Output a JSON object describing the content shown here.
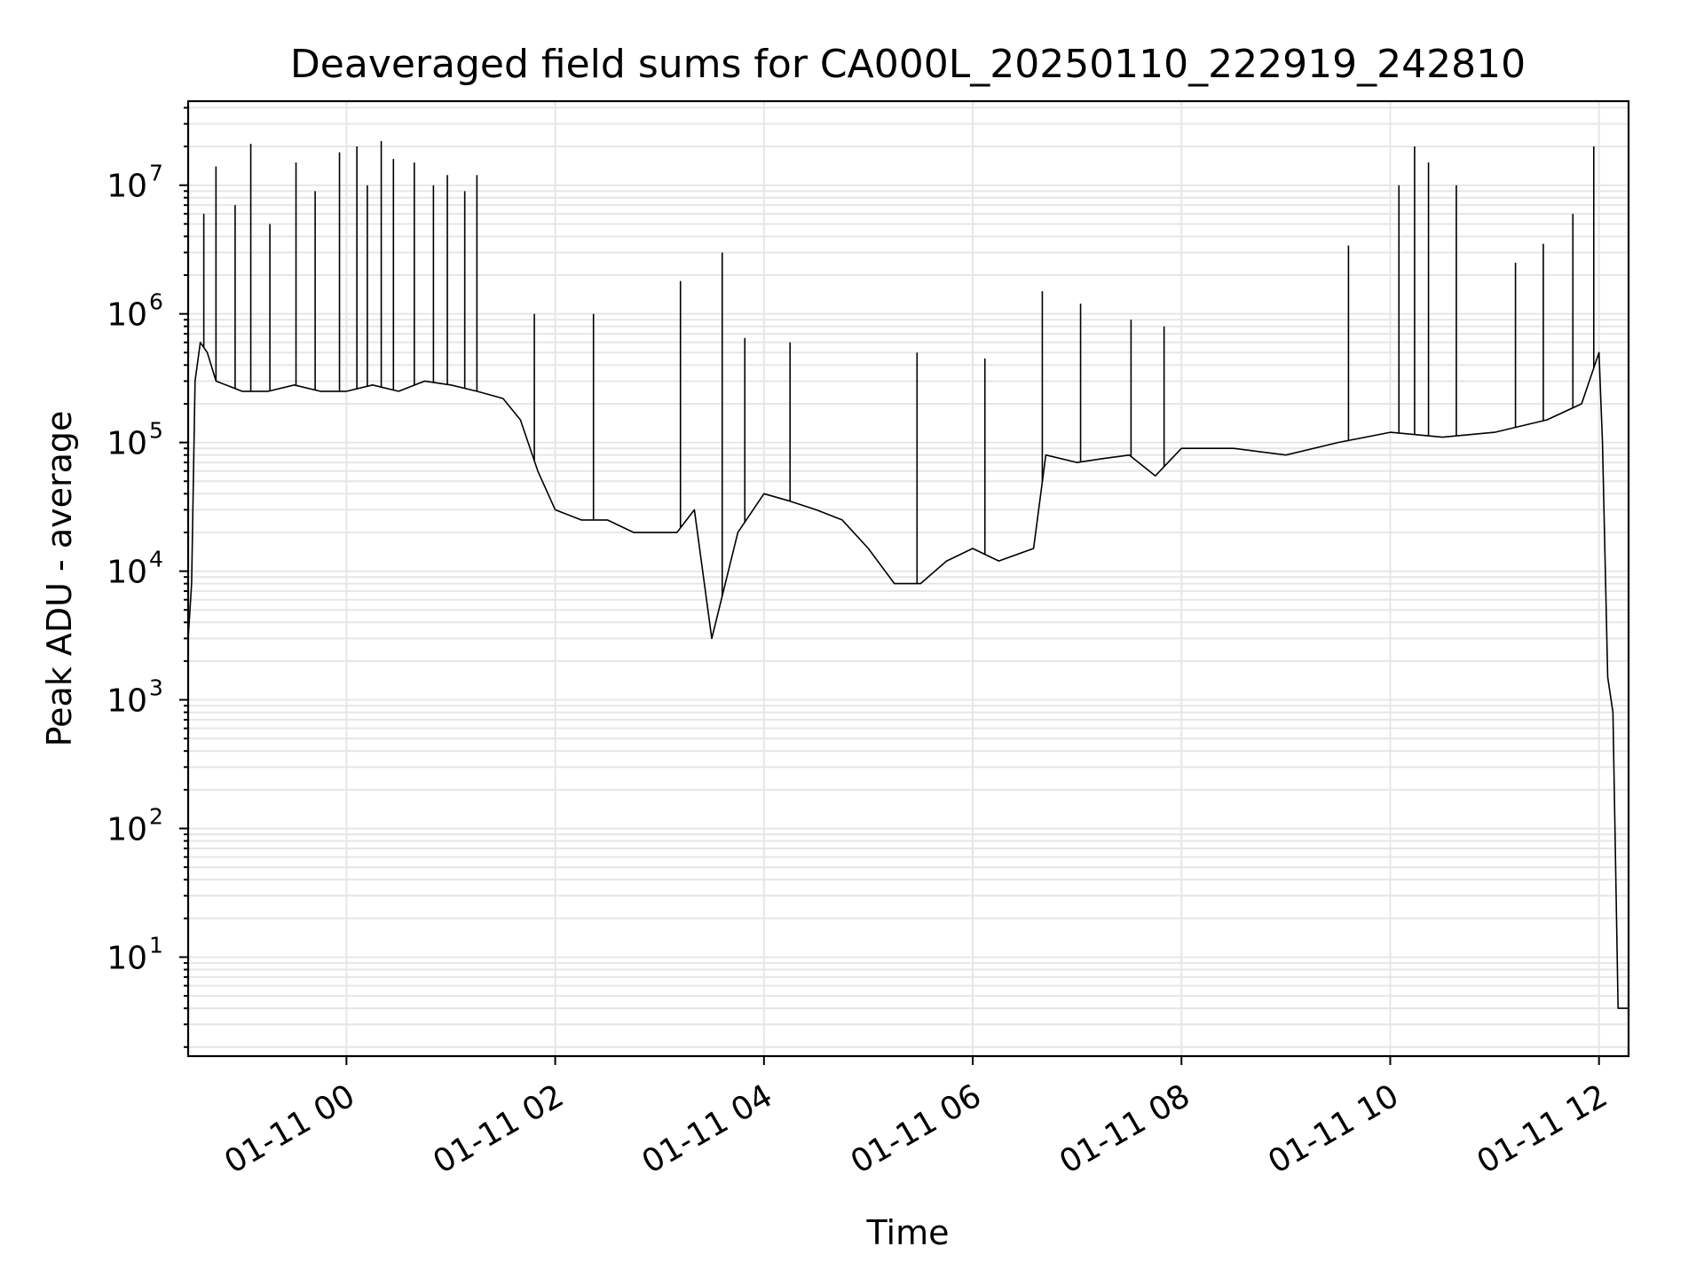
{
  "chart_data": {
    "type": "line",
    "title": "Deaveraged field sums for CA000L_20250110_222919_242810",
    "xlabel": "Time",
    "ylabel": "Peak ADU - average",
    "yscale": "log",
    "ylim": [
      1.7,
      45000000
    ],
    "xlim": [
      "2025-01-10 22:29",
      "2025-01-11 12:17"
    ],
    "x_ticks": [
      {
        "value": "2025-01-11 00:00",
        "label": "01-11 00"
      },
      {
        "value": "2025-01-11 02:00",
        "label": "01-11 02"
      },
      {
        "value": "2025-01-11 04:00",
        "label": "01-11 04"
      },
      {
        "value": "2025-01-11 06:00",
        "label": "01-11 06"
      },
      {
        "value": "2025-01-11 08:00",
        "label": "01-11 08"
      },
      {
        "value": "2025-01-11 10:00",
        "label": "01-11 10"
      },
      {
        "value": "2025-01-11 12:00",
        "label": "01-11 12"
      }
    ],
    "y_ticks": [
      {
        "value": 10,
        "base": "10",
        "exp": "1"
      },
      {
        "value": 100,
        "base": "10",
        "exp": "2"
      },
      {
        "value": 1000,
        "base": "10",
        "exp": "3"
      },
      {
        "value": 10000,
        "base": "10",
        "exp": "4"
      },
      {
        "value": 100000,
        "base": "10",
        "exp": "5"
      },
      {
        "value": 1000000,
        "base": "10",
        "exp": "6"
      },
      {
        "value": 10000000,
        "base": "10",
        "exp": "7"
      }
    ],
    "grid": true,
    "line_color": "#000000",
    "series": [
      {
        "x": [
          "2025-01-10 22:29",
          "2025-01-10 22:31",
          "2025-01-10 22:33",
          "2025-01-10 22:36",
          "2025-01-10 22:40",
          "2025-01-10 22:45",
          "2025-01-10 23:00",
          "2025-01-10 23:15",
          "2025-01-10 23:30",
          "2025-01-10 23:45",
          "2025-01-11 00:00",
          "2025-01-11 00:15",
          "2025-01-11 00:30",
          "2025-01-11 00:45",
          "2025-01-11 01:00",
          "2025-01-11 01:15",
          "2025-01-11 01:30",
          "2025-01-11 01:40",
          "2025-01-11 01:50",
          "2025-01-11 02:00",
          "2025-01-11 02:15",
          "2025-01-11 02:30",
          "2025-01-11 02:45",
          "2025-01-11 03:00",
          "2025-01-11 03:10",
          "2025-01-11 03:20",
          "2025-01-11 03:30",
          "2025-01-11 03:45",
          "2025-01-11 04:00",
          "2025-01-11 04:15",
          "2025-01-11 04:30",
          "2025-01-11 04:45",
          "2025-01-11 05:00",
          "2025-01-11 05:15",
          "2025-01-11 05:30",
          "2025-01-11 05:45",
          "2025-01-11 06:00",
          "2025-01-11 06:15",
          "2025-01-11 06:35",
          "2025-01-11 06:42",
          "2025-01-11 07:00",
          "2025-01-11 07:15",
          "2025-01-11 07:30",
          "2025-01-11 07:45",
          "2025-01-11 08:00",
          "2025-01-11 08:30",
          "2025-01-11 09:00",
          "2025-01-11 09:30",
          "2025-01-11 10:00",
          "2025-01-11 10:30",
          "2025-01-11 11:00",
          "2025-01-11 11:30",
          "2025-01-11 11:50",
          "2025-01-11 12:00",
          "2025-01-11 12:02",
          "2025-01-11 12:05",
          "2025-01-11 12:08",
          "2025-01-11 12:11",
          "2025-01-11 12:14",
          "2025-01-11 12:17"
        ],
        "y": [
          3000,
          8000,
          300000,
          600000,
          500000,
          300000,
          250000,
          250000,
          280000,
          250000,
          250000,
          280000,
          250000,
          300000,
          280000,
          250000,
          220000,
          150000,
          60000,
          30000,
          25000,
          25000,
          20000,
          20000,
          20000,
          30000,
          3000,
          20000,
          40000,
          35000,
          30000,
          25000,
          15000,
          8000,
          8000,
          12000,
          15000,
          12000,
          15000,
          80000,
          70000,
          75000,
          80000,
          55000,
          90000,
          90000,
          80000,
          100000,
          120000,
          110000,
          120000,
          150000,
          200000,
          500000,
          100000,
          1500,
          800,
          4,
          4,
          4
        ]
      }
    ],
    "spikes": {
      "x": [
        "2025-01-10 22:38",
        "2025-01-10 22:45",
        "2025-01-10 22:56",
        "2025-01-10 23:05",
        "2025-01-10 23:16",
        "2025-01-10 23:31",
        "2025-01-10 23:42",
        "2025-01-10 23:56",
        "2025-01-11 00:06",
        "2025-01-11 00:12",
        "2025-01-11 00:20",
        "2025-01-11 00:27",
        "2025-01-11 00:39",
        "2025-01-11 00:50",
        "2025-01-11 00:58",
        "2025-01-11 01:08",
        "2025-01-11 01:15",
        "2025-01-11 01:48",
        "2025-01-11 02:22",
        "2025-01-11 03:12",
        "2025-01-11 03:36",
        "2025-01-11 03:49",
        "2025-01-11 04:15",
        "2025-01-11 05:28",
        "2025-01-11 06:07",
        "2025-01-11 06:40",
        "2025-01-11 07:02",
        "2025-01-11 07:31",
        "2025-01-11 07:50",
        "2025-01-11 09:36",
        "2025-01-11 10:05",
        "2025-01-11 10:14",
        "2025-01-11 10:22",
        "2025-01-11 10:38",
        "2025-01-11 11:12",
        "2025-01-11 11:28",
        "2025-01-11 11:45",
        "2025-01-11 11:57"
      ],
      "y": [
        6000000,
        14000000,
        7000000,
        21000000,
        5000000,
        15000000,
        9000000,
        18000000,
        20000000,
        10000000,
        22000000,
        16000000,
        15000000,
        10000000,
        12000000,
        9000000,
        12000000,
        1000000,
        1000000,
        1800000,
        3000000,
        650000,
        600000,
        500000,
        450000,
        1500000,
        1200000,
        900000,
        800000,
        3400000,
        10000000,
        20000000,
        15000000,
        10000000,
        2500000,
        3500000,
        6000000,
        20000000
      ]
    }
  }
}
